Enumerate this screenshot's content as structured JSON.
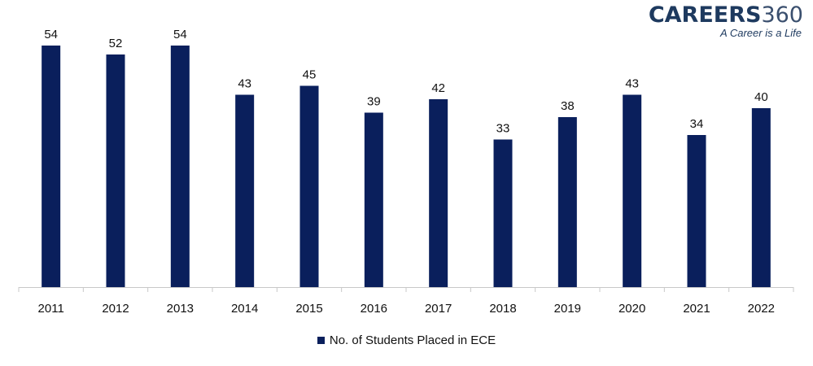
{
  "logo": {
    "brand": "CAREERS",
    "number": "360",
    "tagline": "A Career is a Life"
  },
  "legend": {
    "label": "No. of Students Placed in ECE",
    "color": "#0a1f5c"
  },
  "chart_data": {
    "type": "bar",
    "title": "",
    "xlabel": "",
    "ylabel": "",
    "categories": [
      "2011",
      "2012",
      "2013",
      "2014",
      "2015",
      "2016",
      "2017",
      "2018",
      "2019",
      "2020",
      "2021",
      "2022"
    ],
    "series": [
      {
        "name": "No. of Students Placed in ECE",
        "color": "#0a1f5c",
        "values": [
          54,
          52,
          54,
          43,
          45,
          39,
          42,
          33,
          38,
          43,
          34,
          40
        ]
      }
    ],
    "ylim": [
      0,
      54
    ],
    "grid": false,
    "data_labels": true,
    "legend_position": "bottom"
  }
}
